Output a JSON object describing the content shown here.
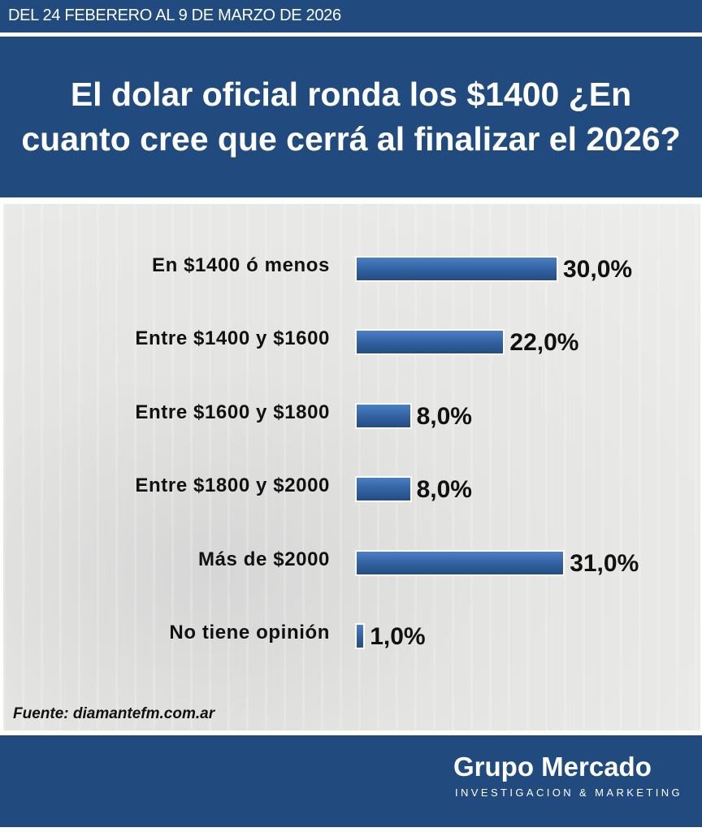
{
  "header": {
    "date_range": "DEL 24 FEBERERO AL 9 DE MARZO DE 2026"
  },
  "title": "El dolar oficial ronda los $1400 ¿En cuanto cree que cerrá al finalizar el 2026?",
  "chart_data": {
    "type": "bar",
    "orientation": "horizontal",
    "title": "El dolar oficial ronda los $1400 ¿En cuanto cree que cerrá al finalizar el 2026?",
    "categories": [
      "En $1400 ó menos",
      "Entre $1400 y $1600",
      "Entre $1600 y $1800",
      "Entre $1800 y $2000",
      "Más de $2000",
      "No tiene opinión"
    ],
    "values": [
      30.0,
      22.0,
      8.0,
      8.0,
      31.0,
      1.0
    ],
    "value_labels": [
      "30,0%",
      "22,0%",
      "8,0%",
      "8,0%",
      "31,0%",
      "1,0%"
    ],
    "xlabel": "",
    "ylabel": "",
    "xlim": [
      0,
      31
    ],
    "bar_color": "#2f5e9c"
  },
  "source": "Fuente: diamantefm.com.ar",
  "footer": {
    "brand": "Grupo Mercado",
    "tagline": "INVESTIGACION & MARKETING"
  }
}
